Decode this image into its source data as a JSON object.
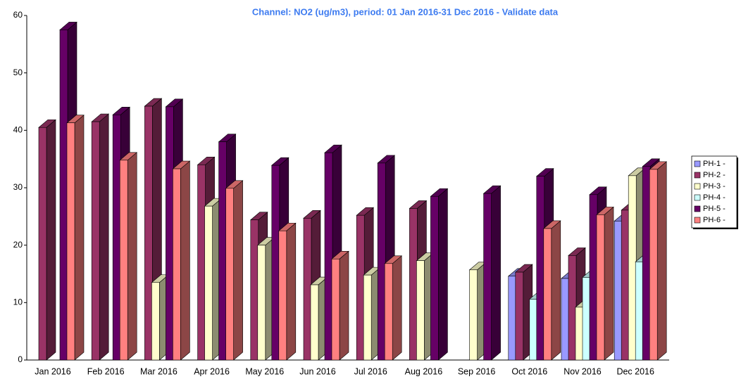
{
  "chart_data": {
    "type": "bar3d",
    "title": "Channel: NO2 (ug/m3), period: 01 Jan 2016-31 Dec 2016 - Validate data",
    "categories": [
      "Jan 2016",
      "Feb 2016",
      "Mar 2016",
      "Apr 2016",
      "May 2016",
      "Jun 2016",
      "Jul 2016",
      "Aug 2016",
      "Sep 2016",
      "Oct 2016",
      "Nov 2016",
      "Dec 2016"
    ],
    "series": [
      {
        "name": "PH-1 -",
        "color": "#9999ff",
        "values": [
          null,
          null,
          null,
          null,
          null,
          null,
          null,
          null,
          null,
          14.6,
          14.2,
          24.2
        ]
      },
      {
        "name": "PH-2 -",
        "color": "#993366",
        "values": [
          40.5,
          41.5,
          44.2,
          34.0,
          24.4,
          24.7,
          25.2,
          26.4,
          null,
          15.3,
          18.2,
          26.1
        ]
      },
      {
        "name": "PH-3 -",
        "color": "#ffffcc",
        "values": [
          null,
          null,
          13.5,
          26.8,
          20.0,
          13.1,
          14.8,
          17.3,
          15.7,
          null,
          9.2,
          32.1
        ]
      },
      {
        "name": "PH-4 -",
        "color": "#ccffff",
        "values": [
          null,
          null,
          null,
          null,
          null,
          null,
          null,
          null,
          null,
          10.6,
          14.4,
          17.1
        ]
      },
      {
        "name": "PH-5 -",
        "color": "#660066",
        "values": [
          57.5,
          42.7,
          44.1,
          38.0,
          33.9,
          36.1,
          34.3,
          28.5,
          29.0,
          32.0,
          28.8,
          33.7
        ]
      },
      {
        "name": "PH-6 -",
        "color": "#ff8080",
        "values": [
          41.3,
          34.8,
          33.3,
          29.9,
          22.5,
          17.6,
          16.8,
          null,
          null,
          22.9,
          25.3,
          33.2
        ]
      }
    ],
    "ylim": [
      0,
      60
    ],
    "yticks": [
      0,
      10,
      20,
      30,
      40,
      50,
      60
    ],
    "legend": "right"
  }
}
